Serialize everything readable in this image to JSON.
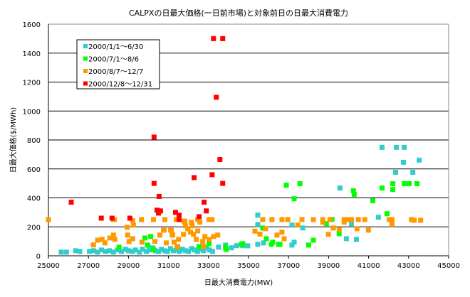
{
  "chart_data": {
    "type": "scatter",
    "title": "CALPXの日最大価格(一日前市場)と対象前日の日最大消費電力",
    "xlabel": "日最大消費電力(MW)",
    "ylabel": "日最大価格($/MWh)",
    "xlim": [
      25000,
      45000
    ],
    "ylim": [
      0,
      1600
    ],
    "xticks": [
      "25000",
      "27000",
      "29000",
      "31000",
      "33000",
      "35000",
      "37000",
      "39000",
      "41000",
      "43000",
      "45000"
    ],
    "yticks": [
      "0",
      "200",
      "400",
      "600",
      "800",
      "1000",
      "1200",
      "1400",
      "1600"
    ],
    "grid": "horizontal",
    "legend_position": "top-left",
    "series": [
      {
        "name": "2000/1/1～6/30",
        "color": "#33CCCC",
        "points": [
          [
            25640,
            25
          ],
          [
            25900,
            25
          ],
          [
            26360,
            35
          ],
          [
            26570,
            30
          ],
          [
            27050,
            30
          ],
          [
            27250,
            35
          ],
          [
            27450,
            25
          ],
          [
            27650,
            40
          ],
          [
            27850,
            30
          ],
          [
            28050,
            35
          ],
          [
            28250,
            25
          ],
          [
            28450,
            40
          ],
          [
            28650,
            30
          ],
          [
            28850,
            45
          ],
          [
            29000,
            35
          ],
          [
            29200,
            30
          ],
          [
            29350,
            40
          ],
          [
            29550,
            25
          ],
          [
            29700,
            45
          ],
          [
            29900,
            30
          ],
          [
            30050,
            40
          ],
          [
            30200,
            55
          ],
          [
            30350,
            35
          ],
          [
            30500,
            30
          ],
          [
            30650,
            45
          ],
          [
            30800,
            35
          ],
          [
            30950,
            30
          ],
          [
            31100,
            50
          ],
          [
            31250,
            35
          ],
          [
            31400,
            40
          ],
          [
            31550,
            30
          ],
          [
            31700,
            45
          ],
          [
            31850,
            35
          ],
          [
            32000,
            30
          ],
          [
            32150,
            50
          ],
          [
            32300,
            40
          ],
          [
            32450,
            30
          ],
          [
            32600,
            45
          ],
          [
            32750,
            35
          ],
          [
            32900,
            55
          ],
          [
            33050,
            40
          ],
          [
            33200,
            30
          ],
          [
            33500,
            60
          ],
          [
            33850,
            74
          ],
          [
            34150,
            55
          ],
          [
            34400,
            70
          ],
          [
            34710,
            70
          ],
          [
            34960,
            69
          ],
          [
            35460,
            79
          ],
          [
            35750,
            89
          ],
          [
            35460,
            281
          ],
          [
            35460,
            216
          ],
          [
            37170,
            212
          ],
          [
            37710,
            192
          ],
          [
            37170,
            74
          ],
          [
            37280,
            94
          ],
          [
            39570,
            468
          ],
          [
            39890,
            118
          ],
          [
            40140,
            222
          ],
          [
            40390,
            113
          ],
          [
            41490,
            266
          ],
          [
            41670,
            749
          ],
          [
            42390,
            749
          ],
          [
            42780,
            749
          ],
          [
            42740,
            646
          ],
          [
            43530,
            661
          ],
          [
            42350,
            577
          ],
          [
            43210,
            577
          ]
        ]
      },
      {
        "name": "2000/7/1～8/6",
        "color": "#00FF00",
        "points": [
          [
            28530,
            59
          ],
          [
            29820,
            123
          ],
          [
            30110,
            133
          ],
          [
            29960,
            74
          ],
          [
            30250,
            44
          ],
          [
            32530,
            64
          ],
          [
            33030,
            84
          ],
          [
            33850,
            59
          ],
          [
            33890,
            44
          ],
          [
            34640,
            79
          ],
          [
            34710,
            84
          ],
          [
            35710,
            192
          ],
          [
            35890,
            118
          ],
          [
            36140,
            79
          ],
          [
            36210,
            94
          ],
          [
            36500,
            79
          ],
          [
            36570,
            79
          ],
          [
            36890,
            488
          ],
          [
            37570,
            498
          ],
          [
            37280,
            394
          ],
          [
            38000,
            74
          ],
          [
            38240,
            108
          ],
          [
            38890,
            222
          ],
          [
            39170,
            251
          ],
          [
            39530,
            153
          ],
          [
            40240,
            449
          ],
          [
            40280,
            424
          ],
          [
            41210,
            380
          ],
          [
            41670,
            468
          ],
          [
            41920,
            291
          ],
          [
            42210,
            498
          ],
          [
            42210,
            458
          ],
          [
            42780,
            498
          ],
          [
            43030,
            498
          ],
          [
            43420,
            498
          ]
        ]
      },
      {
        "name": "2000/8/7～12/7",
        "color": "#FF9900",
        "points": [
          [
            25000,
            250
          ],
          [
            27250,
            75
          ],
          [
            27460,
            108
          ],
          [
            27680,
            113
          ],
          [
            27820,
            89
          ],
          [
            28070,
            123
          ],
          [
            28250,
            143
          ],
          [
            28320,
            113
          ],
          [
            28250,
            250
          ],
          [
            28300,
            250
          ],
          [
            28930,
            197
          ],
          [
            28960,
            143
          ],
          [
            29030,
            99
          ],
          [
            29210,
            242
          ],
          [
            29250,
            212
          ],
          [
            29210,
            118
          ],
          [
            29680,
            94
          ],
          [
            29650,
            250
          ],
          [
            30250,
            250
          ],
          [
            30320,
            99
          ],
          [
            30570,
            143
          ],
          [
            30780,
            177
          ],
          [
            30890,
            89
          ],
          [
            30820,
            250
          ],
          [
            31140,
            177
          ],
          [
            31180,
            148
          ],
          [
            31280,
            94
          ],
          [
            31460,
            64
          ],
          [
            31390,
            250
          ],
          [
            31750,
            148
          ],
          [
            31780,
            240
          ],
          [
            31820,
            237
          ],
          [
            31850,
            207
          ],
          [
            31960,
            187
          ],
          [
            32100,
            163
          ],
          [
            32180,
            207
          ],
          [
            32250,
            148
          ],
          [
            32390,
            113
          ],
          [
            32460,
            172
          ],
          [
            32460,
            250
          ],
          [
            32570,
            232
          ],
          [
            32710,
            99
          ],
          [
            32820,
            133
          ],
          [
            32750,
            64
          ],
          [
            33030,
            113
          ],
          [
            33250,
            133
          ],
          [
            33180,
            250
          ],
          [
            33460,
            143
          ],
          [
            30750,
            177
          ],
          [
            31100,
            177
          ],
          [
            31210,
            143
          ],
          [
            31500,
            113
          ],
          [
            32140,
            232
          ],
          [
            31430,
            64
          ],
          [
            33030,
            250
          ],
          [
            35320,
            170
          ],
          [
            35570,
            150
          ],
          [
            35710,
            250
          ],
          [
            35850,
            187
          ],
          [
            36170,
            250
          ],
          [
            36420,
            143
          ],
          [
            36670,
            163
          ],
          [
            36670,
            250
          ],
          [
            36780,
            118
          ],
          [
            36960,
            250
          ],
          [
            37460,
            212
          ],
          [
            37670,
            250
          ],
          [
            38240,
            250
          ],
          [
            38710,
            232
          ],
          [
            38710,
            250
          ],
          [
            38990,
            148
          ],
          [
            39070,
            250
          ],
          [
            39240,
            192
          ],
          [
            39530,
            182
          ],
          [
            39780,
            232
          ],
          [
            39780,
            250
          ],
          [
            39960,
            250
          ],
          [
            40140,
            250
          ],
          [
            40420,
            187
          ],
          [
            40490,
            250
          ],
          [
            40810,
            250
          ],
          [
            40990,
            177
          ],
          [
            42030,
            250
          ],
          [
            42170,
            217
          ],
          [
            42170,
            250
          ],
          [
            43140,
            250
          ],
          [
            43280,
            245
          ],
          [
            43600,
            245
          ]
        ]
      },
      {
        "name": "2000/12/8～12/31",
        "color": "#FF0000",
        "points": [
          [
            26140,
            370
          ],
          [
            27640,
            260
          ],
          [
            28180,
            260
          ],
          [
            29070,
            260
          ],
          [
            30280,
            820
          ],
          [
            30280,
            500
          ],
          [
            30530,
            410
          ],
          [
            30430,
            315
          ],
          [
            30600,
            310
          ],
          [
            30500,
            295
          ],
          [
            31350,
            300
          ],
          [
            31530,
            280
          ],
          [
            31530,
            250
          ],
          [
            32280,
            540
          ],
          [
            33180,
            560
          ],
          [
            33710,
            500
          ],
          [
            32780,
            370
          ],
          [
            32890,
            310
          ],
          [
            32530,
            270
          ],
          [
            33250,
            1500
          ],
          [
            33710,
            1500
          ],
          [
            33390,
            1095
          ],
          [
            33570,
            665
          ]
        ]
      }
    ]
  }
}
